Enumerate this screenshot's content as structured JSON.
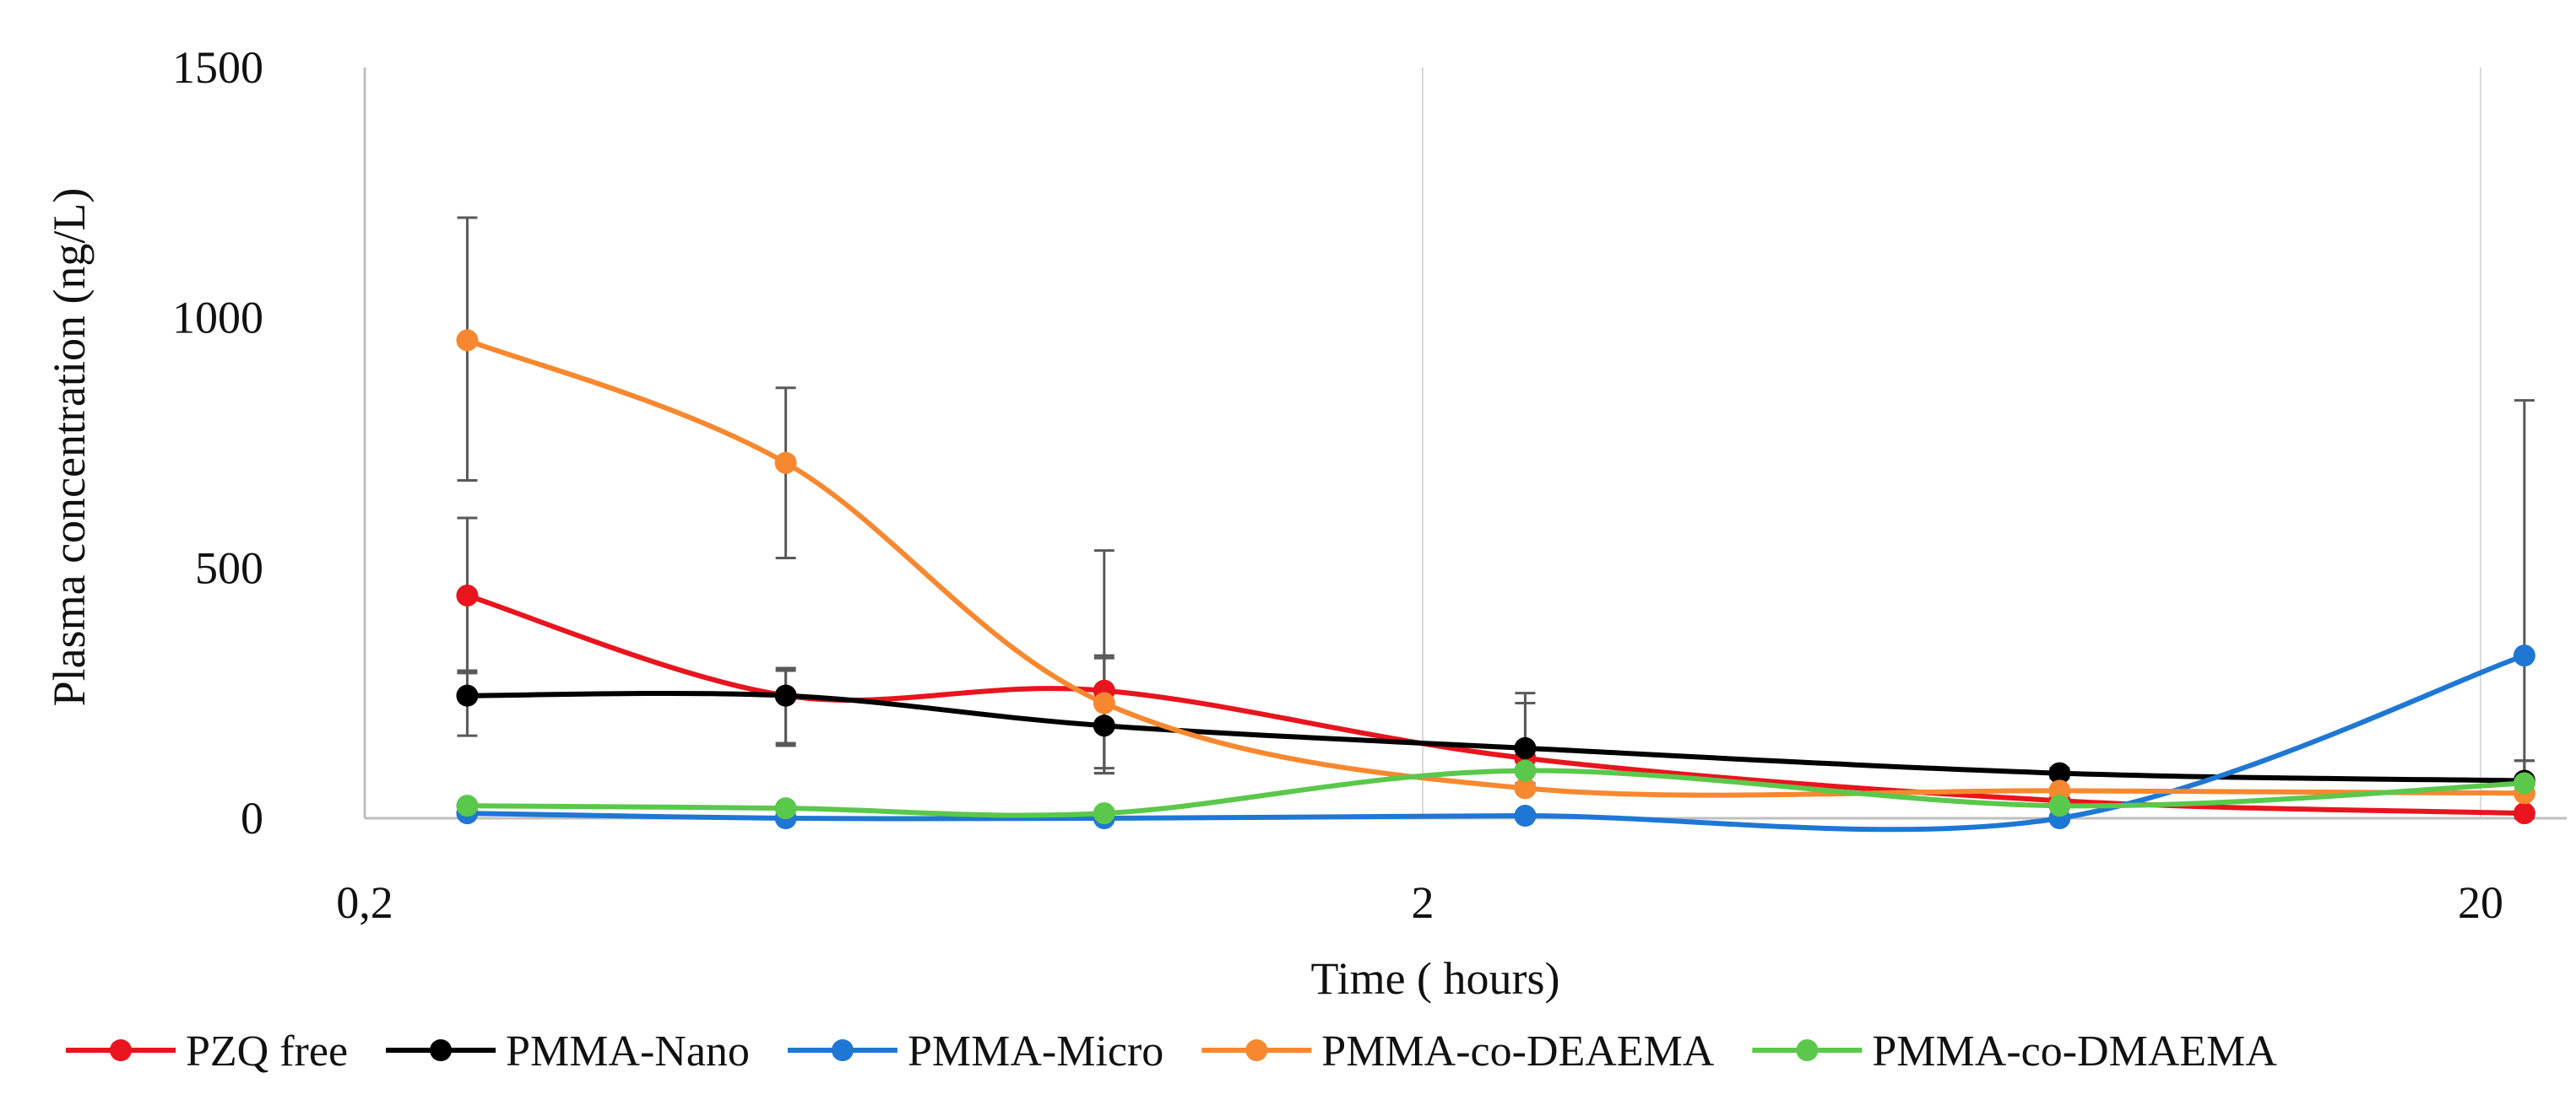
{
  "chart_data": {
    "type": "line",
    "xscale": "log",
    "title": "",
    "xlabel": "Time ( hours)",
    "ylabel": "Plasma concentration (ng/L)",
    "xlim": [
      0.2,
      22
    ],
    "ylim": [
      0,
      1500
    ],
    "x_ticks": [
      {
        "value": 0.2,
        "label": "0,2"
      },
      {
        "value": 2,
        "label": "2"
      },
      {
        "value": 20,
        "label": "20"
      }
    ],
    "y_ticks": [
      {
        "value": 0,
        "label": "0"
      },
      {
        "value": 500,
        "label": "500"
      },
      {
        "value": 1000,
        "label": "1000"
      },
      {
        "value": 1500,
        "label": "1500"
      }
    ],
    "grid": "vertical",
    "legend_position": "bottom",
    "colors": {
      "grid": "#d9d9d9",
      "axis": "#bfbfbf",
      "error_bar": "#595959"
    },
    "series": [
      {
        "name": "PZQ free",
        "color": "#e8141e",
        "x": [
          0.25,
          0.5,
          1,
          2.5,
          8,
          22
        ],
        "y": [
          445,
          245,
          255,
          120,
          35,
          10
        ],
        "err_up": [
          155,
          55,
          70,
          110,
          0,
          0
        ],
        "err_down": [
          155,
          100,
          155,
          50,
          0,
          0
        ]
      },
      {
        "name": "PMMA-Nano",
        "color": "#000000",
        "x": [
          0.25,
          0.5,
          1,
          2.5,
          8,
          22
        ],
        "y": [
          245,
          245,
          185,
          140,
          90,
          75
        ],
        "err_up": [
          50,
          50,
          135,
          110,
          10,
          40
        ],
        "err_down": [
          80,
          95,
          95,
          50,
          10,
          10
        ]
      },
      {
        "name": "PMMA-Micro",
        "color": "#1f77d4",
        "x": [
          0.25,
          0.5,
          1,
          2.5,
          8,
          22
        ],
        "y": [
          10,
          0,
          0,
          5,
          0,
          325
        ],
        "err_up": [
          0,
          0,
          0,
          0,
          0,
          510
        ],
        "err_down": [
          0,
          0,
          0,
          0,
          0,
          325
        ]
      },
      {
        "name": "PMMA-co-DEAEMA",
        "color": "#f7882f",
        "x": [
          0.25,
          0.5,
          1,
          2.5,
          8,
          22
        ],
        "y": [
          955,
          710,
          230,
          60,
          55,
          50
        ],
        "err_up": [
          245,
          150,
          305,
          0,
          0,
          0
        ],
        "err_down": [
          280,
          190,
          140,
          0,
          0,
          0
        ]
      },
      {
        "name": "PMMA-co-DMAEMA",
        "color": "#5ac84b",
        "x": [
          0.25,
          0.5,
          1,
          2.5,
          8,
          22
        ],
        "y": [
          25,
          20,
          10,
          95,
          25,
          70
        ],
        "err_up": [
          0,
          0,
          0,
          0,
          0,
          45
        ],
        "err_down": [
          0,
          0,
          0,
          0,
          0,
          0
        ]
      }
    ]
  }
}
